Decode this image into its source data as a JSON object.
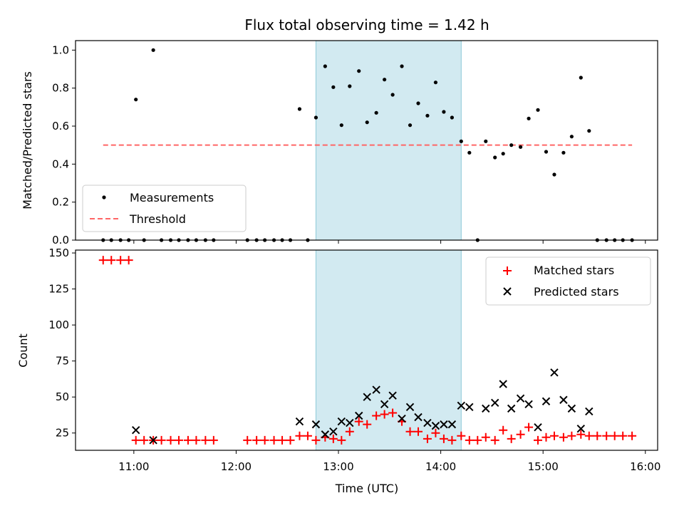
{
  "title": "Flux total observing time = 1.42 h",
  "top": {
    "ylabel": "Matched/Predicted stars",
    "y_ticks": [
      "0.0",
      "0.2",
      "0.4",
      "0.6",
      "0.8",
      "1.0"
    ],
    "legend": {
      "measurements": "Measurements",
      "threshold": "Threshold"
    }
  },
  "bottom": {
    "ylabel": "Count",
    "xlabel": "Time (UTC)",
    "y_ticks": [
      "25",
      "50",
      "75",
      "100",
      "125",
      "150"
    ],
    "x_ticks": [
      "11:00",
      "12:00",
      "13:00",
      "14:00",
      "15:00",
      "16:00"
    ],
    "legend": {
      "matched": "Matched stars",
      "predicted": "Predicted stars"
    }
  },
  "colors": {
    "span": "#add8e6",
    "threshold": "#ff6666",
    "matched": "#ff0000",
    "predicted": "#000000",
    "measurements": "#000000"
  },
  "chart_data": [
    {
      "type": "scatter",
      "title": "Flux total observing time = 1.42 h",
      "ylabel": "Matched/Predicted stars",
      "xlabel": "",
      "x_unit": "hours UTC",
      "xlim": [
        10.43,
        16.12
      ],
      "ylim": [
        0.0,
        1.05
      ],
      "highlight_span": [
        12.78,
        14.2
      ],
      "threshold": {
        "name": "Threshold",
        "y": 0.5,
        "x_range": [
          10.7,
          15.87
        ]
      },
      "series": [
        {
          "name": "Measurements",
          "points": [
            [
              10.7,
              0.0
            ],
            [
              10.78,
              0.0
            ],
            [
              10.87,
              0.0
            ],
            [
              10.95,
              0.0
            ],
            [
              11.02,
              0.74
            ],
            [
              11.1,
              0.0
            ],
            [
              11.19,
              1.0
            ],
            [
              11.27,
              0.0
            ],
            [
              11.36,
              0.0
            ],
            [
              11.44,
              0.0
            ],
            [
              11.53,
              0.0
            ],
            [
              11.61,
              0.0
            ],
            [
              11.7,
              0.0
            ],
            [
              11.78,
              0.0
            ],
            [
              12.11,
              0.0
            ],
            [
              12.2,
              0.0
            ],
            [
              12.28,
              0.0
            ],
            [
              12.37,
              0.0
            ],
            [
              12.45,
              0.0
            ],
            [
              12.53,
              0.0
            ],
            [
              12.62,
              0.69
            ],
            [
              12.7,
              0.0
            ],
            [
              12.78,
              0.645
            ],
            [
              12.87,
              0.915
            ],
            [
              12.95,
              0.805
            ],
            [
              13.03,
              0.605
            ],
            [
              13.11,
              0.81
            ],
            [
              13.2,
              0.89
            ],
            [
              13.28,
              0.62
            ],
            [
              13.37,
              0.67
            ],
            [
              13.45,
              0.845
            ],
            [
              13.53,
              0.765
            ],
            [
              13.62,
              0.915
            ],
            [
              13.7,
              0.605
            ],
            [
              13.78,
              0.72
            ],
            [
              13.87,
              0.655
            ],
            [
              13.95,
              0.83
            ],
            [
              14.03,
              0.675
            ],
            [
              14.11,
              0.645
            ],
            [
              14.2,
              0.52
            ],
            [
              14.28,
              0.46
            ],
            [
              14.36,
              0.0
            ],
            [
              14.44,
              0.52
            ],
            [
              14.53,
              0.435
            ],
            [
              14.61,
              0.455
            ],
            [
              14.69,
              0.5
            ],
            [
              14.78,
              0.49
            ],
            [
              14.86,
              0.64
            ],
            [
              14.95,
              0.685
            ],
            [
              15.03,
              0.465
            ],
            [
              15.11,
              0.345
            ],
            [
              15.2,
              0.46
            ],
            [
              15.28,
              0.545
            ],
            [
              15.37,
              0.855
            ],
            [
              15.45,
              0.575
            ],
            [
              15.53,
              0.0
            ],
            [
              15.62,
              0.0
            ],
            [
              15.7,
              0.0
            ],
            [
              15.78,
              0.0
            ],
            [
              15.87,
              0.0
            ]
          ]
        }
      ]
    },
    {
      "type": "scatter",
      "xlabel": "Time (UTC)",
      "ylabel": "Count",
      "x_unit": "hours UTC",
      "xlim": [
        10.43,
        16.12
      ],
      "ylim": [
        13,
        152
      ],
      "highlight_span": [
        12.78,
        14.2
      ],
      "series": [
        {
          "name": "Matched stars",
          "marker": "plus",
          "points": [
            [
              10.7,
              145
            ],
            [
              10.78,
              145
            ],
            [
              10.87,
              145
            ],
            [
              10.95,
              145
            ],
            [
              11.02,
              20
            ],
            [
              11.1,
              20
            ],
            [
              11.19,
              20
            ],
            [
              11.27,
              20
            ],
            [
              11.36,
              20
            ],
            [
              11.44,
              20
            ],
            [
              11.53,
              20
            ],
            [
              11.61,
              20
            ],
            [
              11.7,
              20
            ],
            [
              11.78,
              20
            ],
            [
              12.11,
              20
            ],
            [
              12.2,
              20
            ],
            [
              12.28,
              20
            ],
            [
              12.37,
              20
            ],
            [
              12.45,
              20
            ],
            [
              12.53,
              20
            ],
            [
              12.62,
              23
            ],
            [
              12.7,
              23
            ],
            [
              12.78,
              20
            ],
            [
              12.87,
              22
            ],
            [
              12.95,
              21
            ],
            [
              13.03,
              20
            ],
            [
              13.11,
              26
            ],
            [
              13.2,
              33
            ],
            [
              13.28,
              31
            ],
            [
              13.37,
              37
            ],
            [
              13.45,
              38
            ],
            [
              13.53,
              39
            ],
            [
              13.62,
              33
            ],
            [
              13.7,
              26
            ],
            [
              13.78,
              26
            ],
            [
              13.87,
              21
            ],
            [
              13.95,
              25
            ],
            [
              14.03,
              21
            ],
            [
              14.11,
              20
            ],
            [
              14.2,
              23
            ],
            [
              14.28,
              20
            ],
            [
              14.36,
              20
            ],
            [
              14.44,
              22
            ],
            [
              14.53,
              20
            ],
            [
              14.61,
              27
            ],
            [
              14.69,
              21
            ],
            [
              14.78,
              24
            ],
            [
              14.86,
              29
            ],
            [
              14.95,
              20
            ],
            [
              15.03,
              22
            ],
            [
              15.11,
              23
            ],
            [
              15.2,
              22
            ],
            [
              15.28,
              23
            ],
            [
              15.37,
              24
            ],
            [
              15.45,
              23
            ],
            [
              15.53,
              23
            ],
            [
              15.62,
              23
            ],
            [
              15.7,
              23
            ],
            [
              15.78,
              23
            ],
            [
              15.87,
              23
            ]
          ]
        },
        {
          "name": "Predicted stars",
          "marker": "x",
          "points": [
            [
              11.02,
              27
            ],
            [
              11.19,
              20
            ],
            [
              12.62,
              33
            ],
            [
              12.78,
              31
            ],
            [
              12.87,
              24
            ],
            [
              12.95,
              26
            ],
            [
              13.03,
              33
            ],
            [
              13.11,
              32
            ],
            [
              13.2,
              37
            ],
            [
              13.28,
              50
            ],
            [
              13.37,
              55
            ],
            [
              13.45,
              45
            ],
            [
              13.53,
              51
            ],
            [
              13.62,
              35
            ],
            [
              13.7,
              43
            ],
            [
              13.78,
              36
            ],
            [
              13.87,
              32
            ],
            [
              13.95,
              30
            ],
            [
              14.03,
              31
            ],
            [
              14.11,
              31
            ],
            [
              14.2,
              44
            ],
            [
              14.28,
              43
            ],
            [
              14.44,
              42
            ],
            [
              14.53,
              46
            ],
            [
              14.61,
              59
            ],
            [
              14.69,
              42
            ],
            [
              14.78,
              49
            ],
            [
              14.86,
              45
            ],
            [
              14.95,
              29
            ],
            [
              15.03,
              47
            ],
            [
              15.11,
              67
            ],
            [
              15.2,
              48
            ],
            [
              15.28,
              42
            ],
            [
              15.37,
              28
            ],
            [
              15.45,
              40
            ]
          ]
        }
      ]
    }
  ]
}
